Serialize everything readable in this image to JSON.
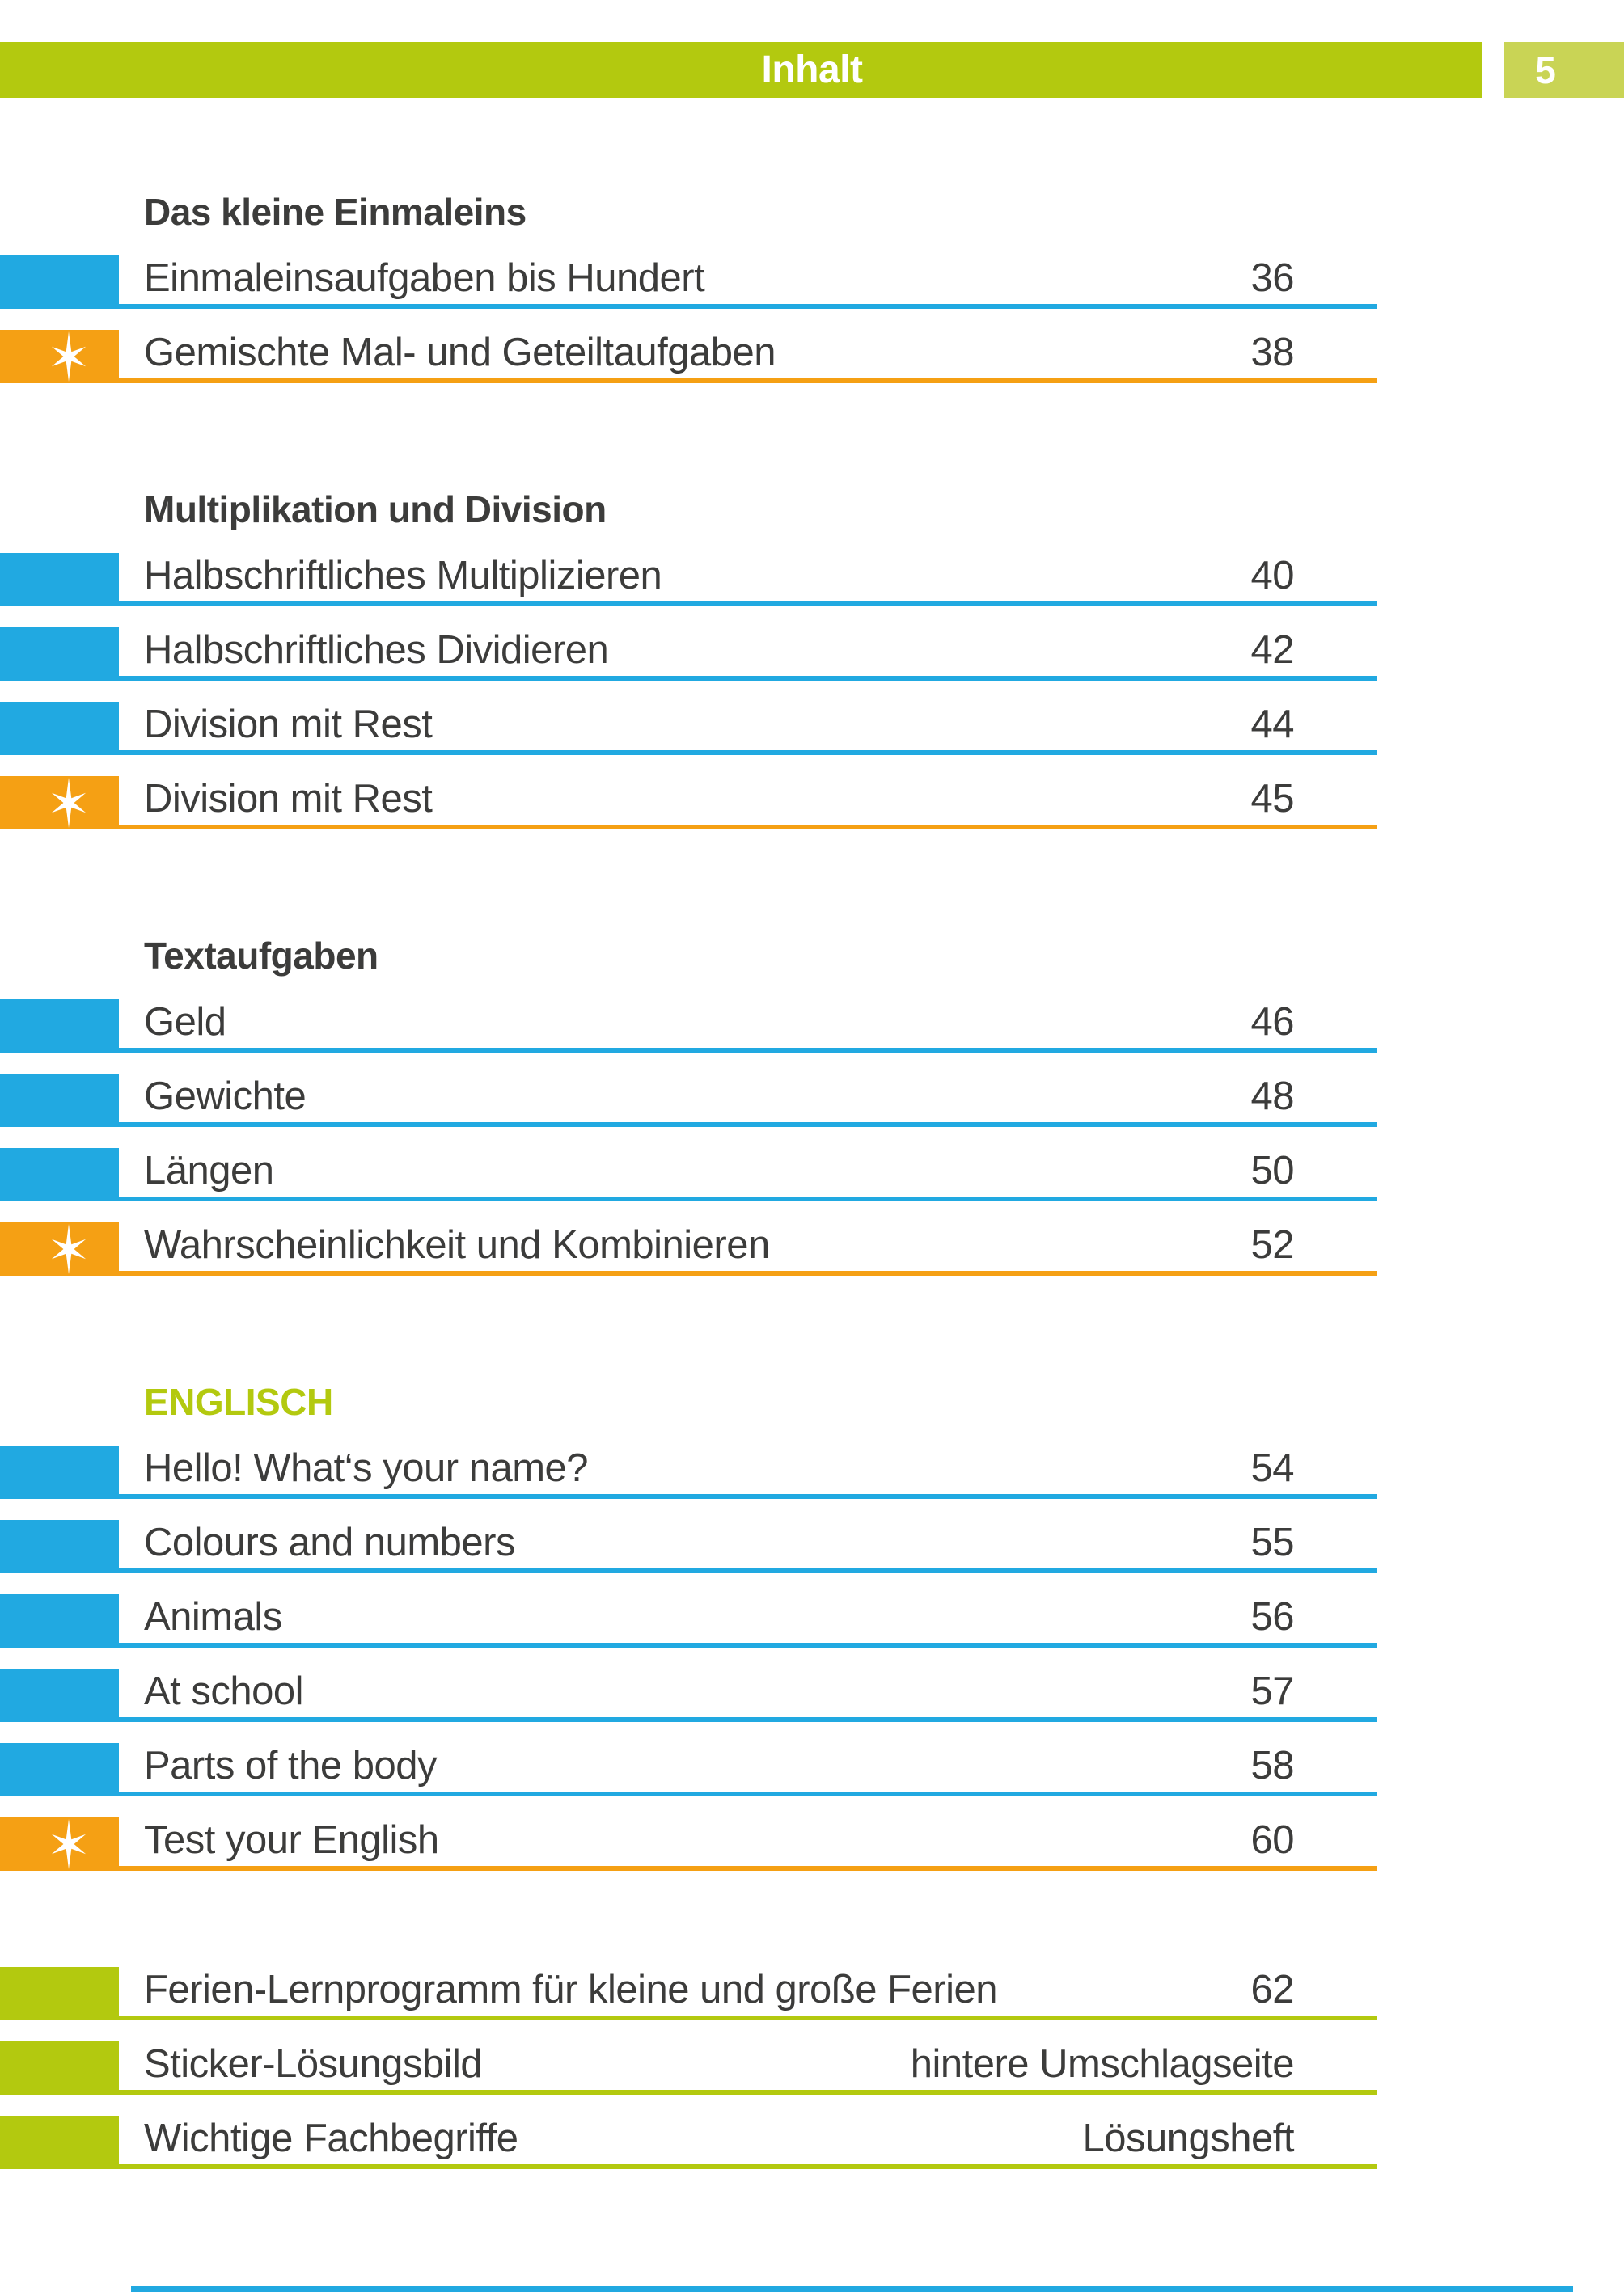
{
  "header": {
    "title": "Inhalt",
    "page_number": "5"
  },
  "colors": {
    "green": "#b3c90f",
    "green_light": "#c9d455",
    "blue": "#21a9e1",
    "orange": "#f5a014",
    "text": "#3c3c3b"
  },
  "star_icon": "six-point-sparkle-star",
  "sections": [
    {
      "title": "Das kleine Einmaleins",
      "title_style": "dark",
      "rows": [
        {
          "label": "Einmaleinsaufgaben bis Hundert",
          "value": "36",
          "type": "blue",
          "star": false
        },
        {
          "label": "Gemischte Mal- und Geteiltaufgaben",
          "value": "38",
          "type": "orange",
          "star": true
        }
      ]
    },
    {
      "title": "Multiplikation und Division",
      "title_style": "dark",
      "rows": [
        {
          "label": "Halbschriftliches Multiplizieren",
          "value": "40",
          "type": "blue",
          "star": false
        },
        {
          "label": "Halbschriftliches Dividieren",
          "value": "42",
          "type": "blue",
          "star": false
        },
        {
          "label": "Division mit Rest",
          "value": "44",
          "type": "blue",
          "star": false
        },
        {
          "label": "Division mit Rest",
          "value": "45",
          "type": "orange",
          "star": true
        }
      ]
    },
    {
      "title": "Textaufgaben",
      "title_style": "dark",
      "rows": [
        {
          "label": "Geld",
          "value": "46",
          "type": "blue",
          "star": false
        },
        {
          "label": "Gewichte",
          "value": "48",
          "type": "blue",
          "star": false
        },
        {
          "label": "Längen",
          "value": "50",
          "type": "blue",
          "star": false
        },
        {
          "label": "Wahrscheinlichkeit und Kombinieren",
          "value": "52",
          "type": "orange",
          "star": true
        }
      ]
    },
    {
      "title": "ENGLISCH",
      "title_style": "green",
      "rows": [
        {
          "label": "Hello! What‘s your name?",
          "value": "54",
          "type": "blue",
          "star": false
        },
        {
          "label": "Colours and numbers",
          "value": "55",
          "type": "blue",
          "star": false
        },
        {
          "label": "Animals",
          "value": "56",
          "type": "blue",
          "star": false
        },
        {
          "label": "At school",
          "value": "57",
          "type": "blue",
          "star": false
        },
        {
          "label": "Parts of the body",
          "value": "58",
          "type": "blue",
          "star": false
        },
        {
          "label": "Test your English",
          "value": "60",
          "type": "orange",
          "star": true
        }
      ]
    },
    {
      "title": "",
      "title_style": "none",
      "rows": [
        {
          "label": "Ferien-Lernprogramm für kleine und große Ferien",
          "value": "62",
          "type": "green",
          "star": false
        },
        {
          "label": "Sticker-Lösungsbild",
          "value": "hintere Umschlagseite",
          "type": "green",
          "star": false
        },
        {
          "label": "Wichtige Fachbegriffe",
          "value": "Lösungsheft",
          "type": "green",
          "star": false
        }
      ]
    }
  ]
}
